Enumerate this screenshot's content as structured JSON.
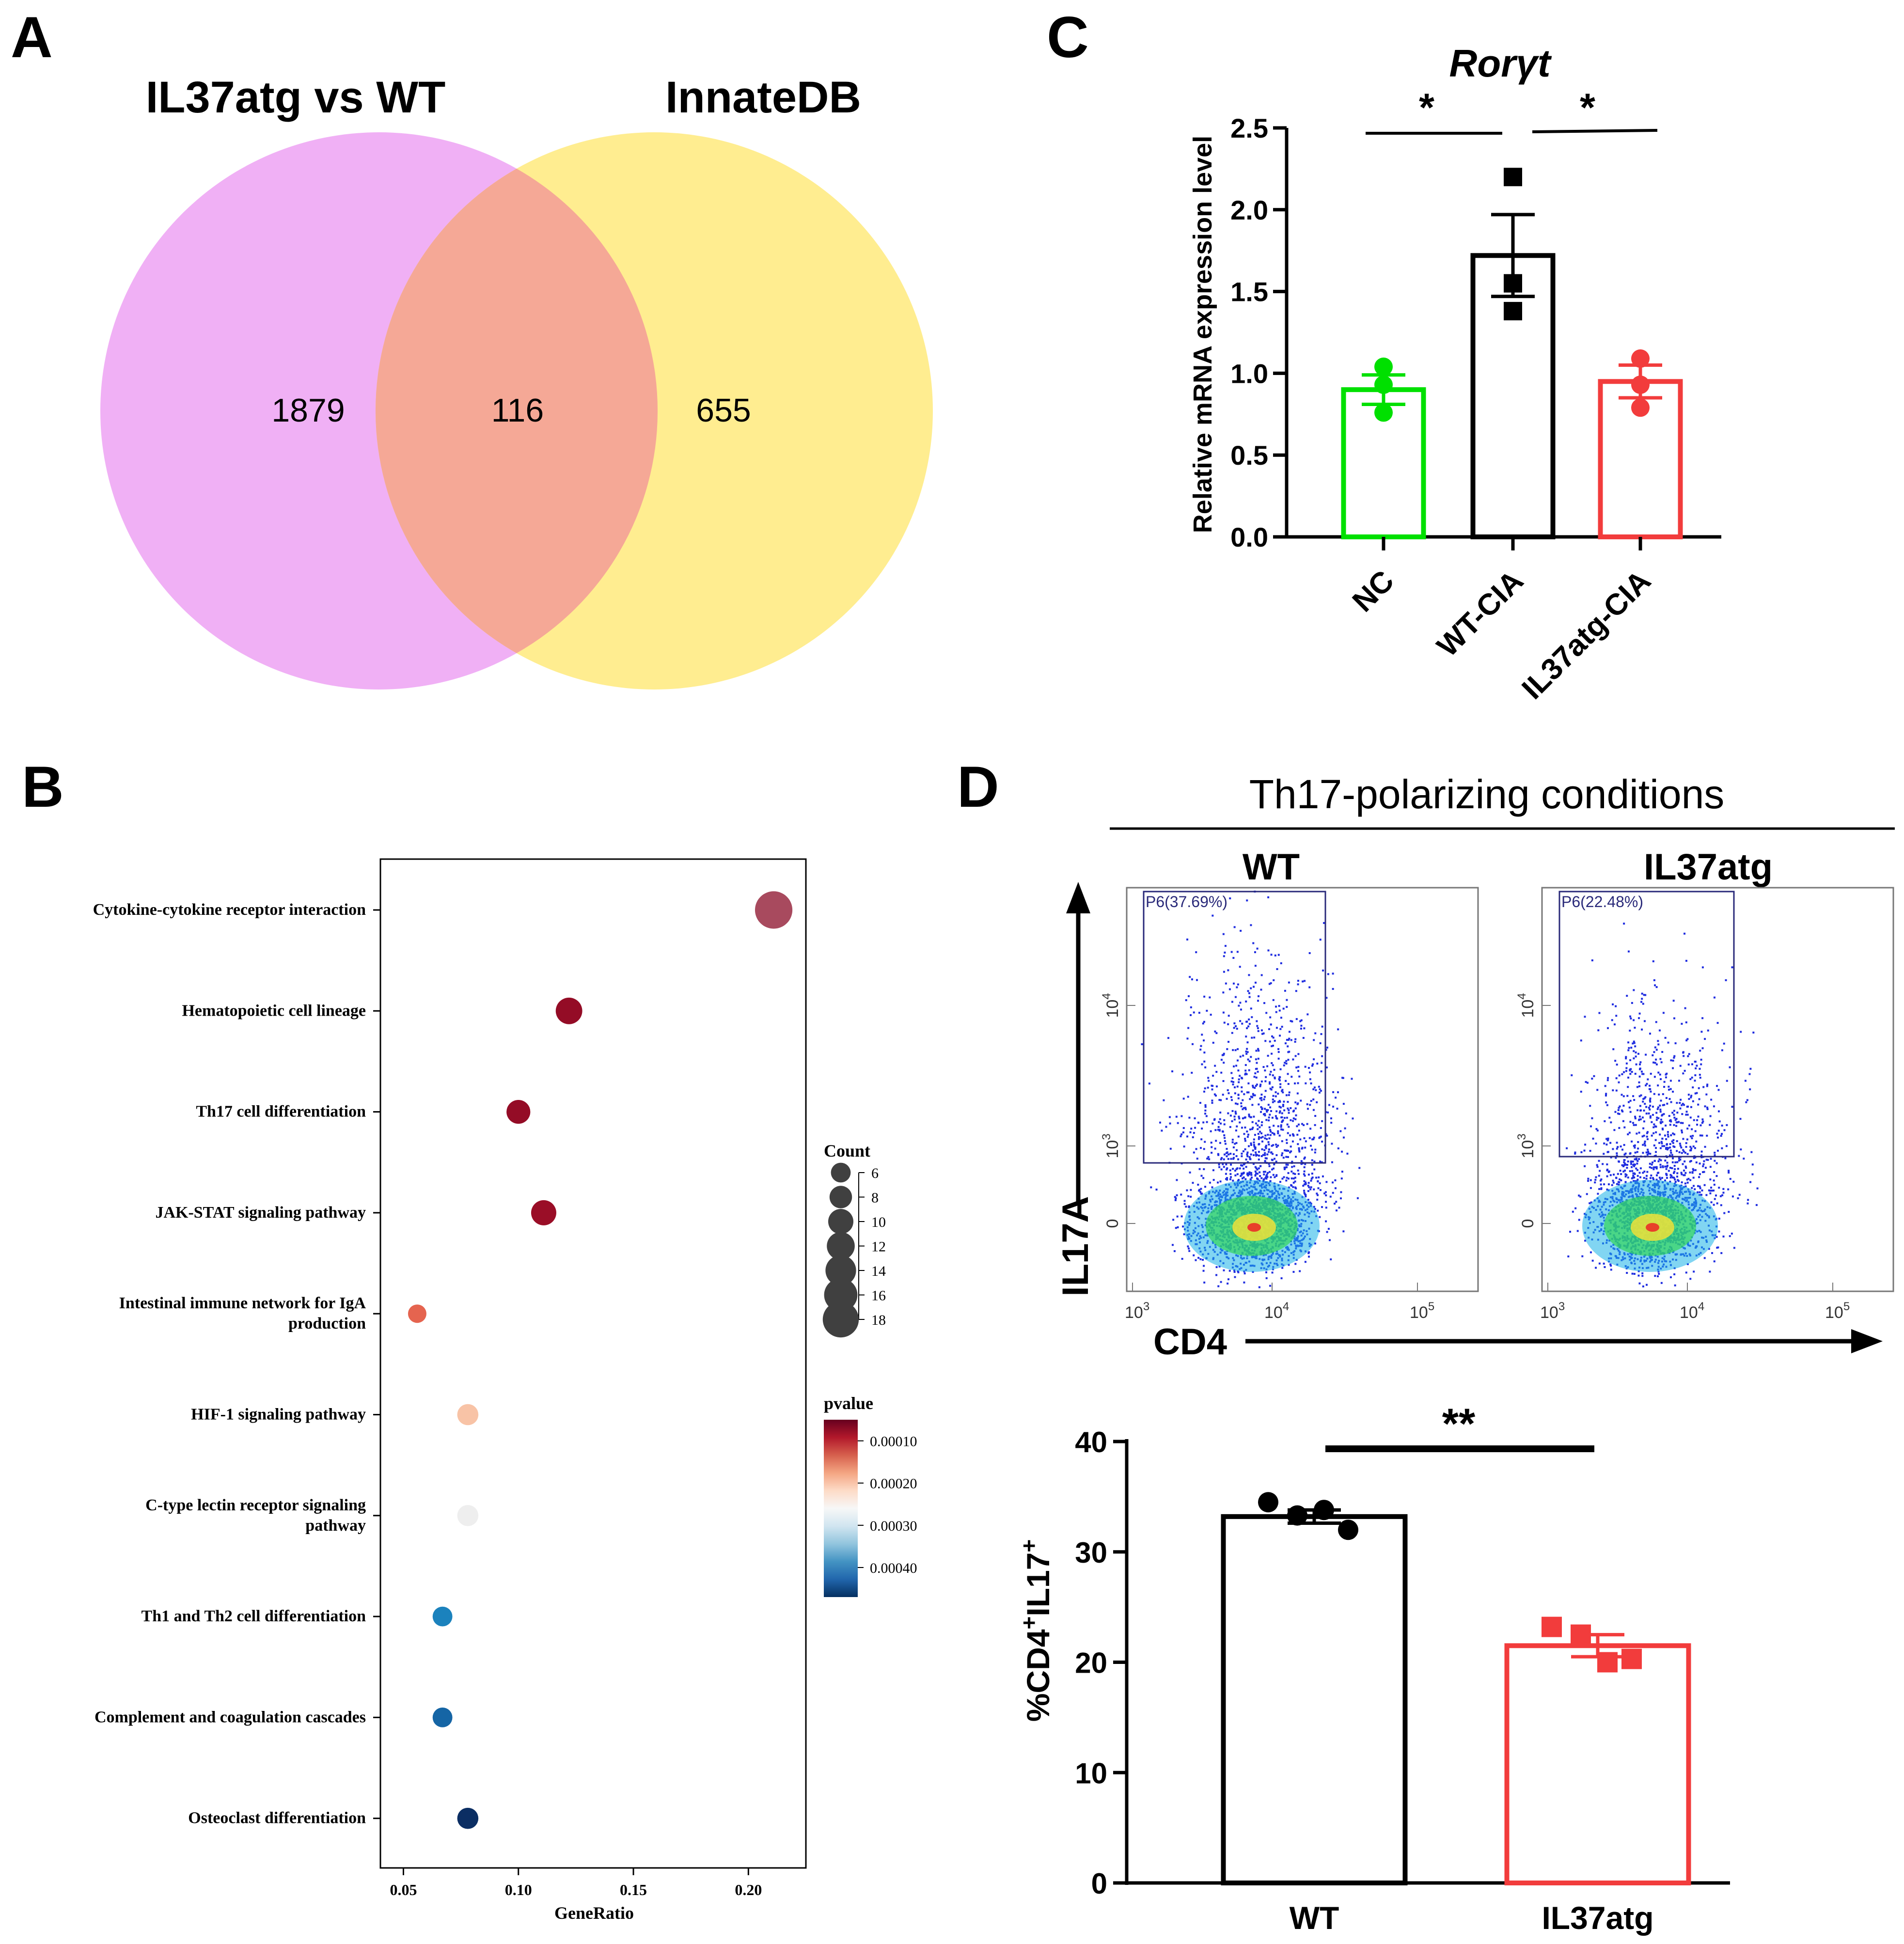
{
  "panels": {
    "a": "A",
    "b": "B",
    "c": "C",
    "d": "D"
  },
  "chart_data": [
    {
      "type": "venn",
      "panel": "A",
      "sets": [
        {
          "name": "IL37atg vs WT",
          "color": "#f0b0f5"
        },
        {
          "name": "InnateDB",
          "color": "#ffed90"
        }
      ],
      "only_left": "1879",
      "intersection": "116",
      "only_right": "655",
      "intersection_color": "#f5a896"
    },
    {
      "type": "scatter",
      "panel": "B",
      "subtype": "dotplot",
      "xlabel": "GeneRatio",
      "xlim": [
        0.04,
        0.225
      ],
      "xticks": [
        0.05,
        0.1,
        0.15,
        0.2
      ],
      "xtick_labels": [
        "0.05",
        "0.10",
        "0.15",
        "0.20"
      ],
      "pathways": [
        {
          "name": "Cytokine-cytokine receptor interaction",
          "gene_ratio": 0.211,
          "count": 19,
          "color": "#a84a5e"
        },
        {
          "name": "Hematopoietic cell lineage",
          "gene_ratio": 0.122,
          "count": 11,
          "color": "#940c26"
        },
        {
          "name": "Th17 cell differentiation",
          "gene_ratio": 0.1,
          "count": 9,
          "color": "#940c26"
        },
        {
          "name": "JAK-STAT signaling pathway",
          "gene_ratio": 0.111,
          "count": 10,
          "color": "#9a0e27"
        },
        {
          "name_lines": [
            "Intestinal immune network for IgA",
            "production"
          ],
          "gene_ratio": 0.056,
          "count": 5,
          "color": "#e5644f"
        },
        {
          "name": "HIF-1 signaling pathway",
          "gene_ratio": 0.078,
          "count": 7,
          "color": "#f8c3a6"
        },
        {
          "name_lines": [
            "C-type lectin receptor signaling",
            "pathway"
          ],
          "gene_ratio": 0.078,
          "count": 7,
          "color": "#eeeeee"
        },
        {
          "name": "Th1 and Th2 cell differentiation",
          "gene_ratio": 0.067,
          "count": 6,
          "color": "#1b82bd"
        },
        {
          "name": "Complement and coagulation cascades",
          "gene_ratio": 0.067,
          "count": 6,
          "color": "#1565a5"
        },
        {
          "name": "Osteoclast differentiation",
          "gene_ratio": 0.078,
          "count": 7,
          "color": "#0b2e63"
        }
      ],
      "size_legend": {
        "title": "Count",
        "values": [
          6,
          8,
          10,
          12,
          14,
          16,
          18
        ],
        "labels": [
          "6",
          "8",
          "10",
          "12",
          "14",
          "16",
          "18"
        ]
      },
      "color_legend": {
        "title": "pvalue",
        "range": [
          5e-05,
          0.00047
        ],
        "ticks": [
          0.0001,
          0.0002,
          0.0003,
          0.0004
        ],
        "tick_labels": [
          "0.00010",
          "0.00020",
          "0.00030",
          "0.00040"
        ],
        "colors": [
          "#67001f",
          "#b2182b",
          "#d6604d",
          "#f4a582",
          "#fddbc7",
          "#f7f7f7",
          "#d1e5f0",
          "#92c5de",
          "#4393c3",
          "#2166ac",
          "#053061"
        ]
      }
    },
    {
      "type": "bar",
      "panel": "C",
      "title": "Rorγt",
      "ylabel": "Relative mRNA expression level",
      "ylim": [
        0,
        2.5
      ],
      "yticks": [
        0,
        0.5,
        1,
        1.5,
        2,
        2.5
      ],
      "ytick_labels": [
        "0.0",
        "0.5",
        "1.0",
        "1.5",
        "2.0",
        "2.5"
      ],
      "categories": [
        "NC",
        "WT-CIA",
        "IL37atg-CIA"
      ],
      "means": [
        0.9,
        1.72,
        0.95
      ],
      "sem": [
        0.09,
        0.25,
        0.1
      ],
      "points": [
        [
          1.04,
          0.93,
          0.76
        ],
        [
          2.2,
          1.55,
          1.38
        ],
        [
          1.09,
          0.93,
          0.79
        ]
      ],
      "colors": [
        "#00e000",
        "#000000",
        "#f23c3c"
      ],
      "markers": [
        "circle",
        "square",
        "circle"
      ],
      "significance": [
        {
          "label": "*",
          "between": [
            0,
            1
          ]
        },
        {
          "label": "*",
          "between": [
            1,
            2
          ]
        }
      ]
    },
    {
      "type": "flow-cytometry",
      "panel": "D",
      "header": "Th17-polarizing conditions",
      "xlabel": "CD4",
      "ylabel": "IL17A",
      "plots": [
        {
          "name": "WT",
          "gate": "P6(37.69%)"
        },
        {
          "name": "IL37atg",
          "gate": "P6(22.48%)"
        }
      ],
      "x_ticks": [
        {
          "base": "10",
          "exp": "3"
        },
        {
          "base": "10",
          "exp": "4"
        },
        {
          "base": "10",
          "exp": "5"
        }
      ],
      "y_ticks": [
        {
          "base": "10",
          "exp": "4"
        },
        {
          "base": "10",
          "exp": "3"
        },
        {
          "base": "0",
          "exp": ""
        }
      ]
    },
    {
      "type": "bar",
      "panel": "D",
      "ylabel_parts": [
        "%CD4",
        "+",
        "IL17",
        "+"
      ],
      "ylim": [
        0,
        40
      ],
      "yticks": [
        0,
        10,
        20,
        30,
        40
      ],
      "ytick_labels": [
        "0",
        "10",
        "20",
        "30",
        "40"
      ],
      "categories": [
        "WT",
        "IL37atg"
      ],
      "means": [
        33.2,
        21.5
      ],
      "sem": [
        0.6,
        1.0
      ],
      "points": [
        [
          34.5,
          33.3,
          33.8,
          32.0
        ],
        [
          23.2,
          22.5,
          20.0,
          20.3
        ]
      ],
      "colors": [
        "#000000",
        "#f23c3c"
      ],
      "markers": [
        "circle",
        "square"
      ],
      "significance": [
        {
          "label": "**",
          "between": [
            0,
            1
          ]
        }
      ]
    }
  ]
}
